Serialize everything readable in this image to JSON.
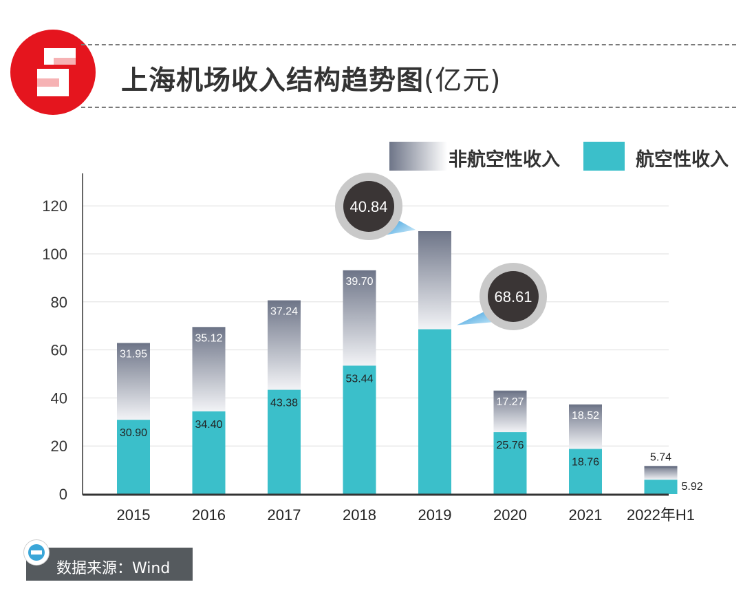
{
  "header": {
    "title": "上海机场收入结构趋势图",
    "unit": "(亿元)",
    "logo_icon": "shanghai-observer-logo-icon",
    "brand_color": "#e5151e"
  },
  "legend": {
    "non_aero_label": "非航空性收入",
    "aero_label": "航空性收入"
  },
  "source": {
    "text": "数据来源：Wind",
    "icon": "info-icon"
  },
  "chart_data": {
    "type": "bar",
    "stacked": true,
    "categories": [
      "2015",
      "2016",
      "2017",
      "2018",
      "2019",
      "2020",
      "2021",
      "2022年H1"
    ],
    "series": [
      {
        "name": "航空性收入",
        "values": [
          30.9,
          34.4,
          43.38,
          53.44,
          68.61,
          25.76,
          18.76,
          5.92
        ],
        "labels": [
          "30.90",
          "34.40",
          "43.38",
          "53.44",
          "68.61",
          "25.76",
          "18.76",
          "5.92"
        ],
        "color": "#3bbfca"
      },
      {
        "name": "非航空性收入",
        "values": [
          31.95,
          35.12,
          37.24,
          39.7,
          40.84,
          17.27,
          18.52,
          5.74
        ],
        "labels": [
          "31.95",
          "35.12",
          "37.24",
          "39.70",
          "40.84",
          "17.27",
          "18.52",
          "5.74"
        ],
        "color_top": "#6e7588",
        "color_bottom": "#f2f3f6"
      }
    ],
    "yticks": [
      "0",
      "20",
      "40",
      "60",
      "80",
      "100",
      "120"
    ],
    "ylim": [
      0,
      130
    ],
    "grid": true,
    "legend_position": "top-right",
    "highlight_year": "2019",
    "axis_color": "#333333",
    "grid_color": "#dddddd"
  }
}
